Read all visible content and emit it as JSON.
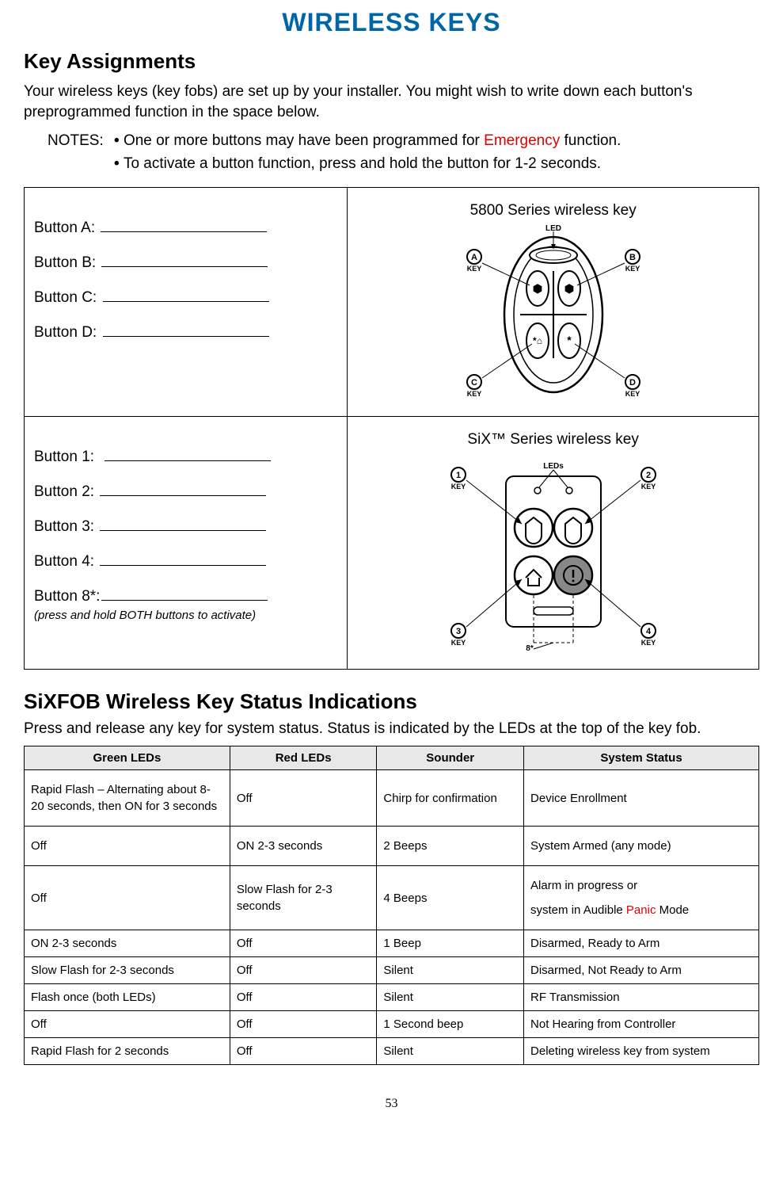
{
  "title": "WIRELESS KEYS",
  "section1": {
    "heading": "Key Assignments",
    "intro": "Your wireless keys (key fobs) are set up by your installer. You might wish to write down each button's preprogrammed function in the space below.",
    "notes_label": "NOTES:",
    "notes": [
      {
        "pre": "One or more buttons may have been programmed for ",
        "red": "Emergency",
        "post": " function."
      },
      {
        "pre": "To activate a button function, press and hold the button for 1-2 seconds.",
        "red": "",
        "post": ""
      }
    ]
  },
  "keyfob_5800": {
    "title": "5800 Series wireless key",
    "buttons": [
      "Button A:",
      "Button B:",
      "Button C:",
      "Button D:"
    ],
    "labels": {
      "A": "A",
      "B": "B",
      "C": "C",
      "D": "D",
      "key": "KEY",
      "led": "LED"
    }
  },
  "keyfob_six": {
    "title": "SiX™ Series wireless key",
    "buttons": [
      "Button 1:",
      "Button 2:",
      "Button 3:",
      "Button 4:",
      "Button 8*:"
    ],
    "note": "(press and hold BOTH buttons to activate)",
    "labels": {
      "1": "1",
      "2": "2",
      "3": "3",
      "4": "4",
      "key": "KEY",
      "leds": "LEDs",
      "star": "8*"
    }
  },
  "section2": {
    "heading": "SiXFOB Wireless Key Status Indications",
    "intro": "Press and release any key for system status. Status is indicated by the LEDs at the top of the key fob."
  },
  "status_table": {
    "headers": [
      "Green LEDs",
      "Red LEDs",
      "Sounder",
      "System Status"
    ],
    "rows": [
      {
        "c": [
          "Rapid Flash – Alternating about 8-20 seconds, then ON for 3 seconds",
          "Off",
          "Chirp for confirmation",
          "Device Enrollment"
        ],
        "tall": true
      },
      {
        "c": [
          "Off",
          "ON 2-3 seconds",
          "2 Beeps",
          "System Armed (any mode)"
        ],
        "tall": true
      },
      {
        "c": [
          "Off",
          "Slow Flash for 2-3 seconds",
          "4 Beeps",
          ""
        ],
        "tall": true,
        "special_status": {
          "line1": "Alarm in progress or",
          "line2_pre": "system in Audible ",
          "line2_red": "Panic",
          "line2_post": " Mode"
        }
      },
      {
        "c": [
          "ON 2-3 seconds",
          "Off",
          "1 Beep",
          "Disarmed, Ready to Arm"
        ]
      },
      {
        "c": [
          "Slow Flash for 2-3 seconds",
          "Off",
          "Silent",
          "Disarmed, Not Ready to Arm"
        ]
      },
      {
        "c": [
          "Flash once (both LEDs)",
          "Off",
          "Silent",
          "RF Transmission"
        ]
      },
      {
        "c": [
          "Off",
          "Off",
          "1 Second beep",
          "Not Hearing from Controller"
        ]
      },
      {
        "c": [
          "Rapid Flash for 2 seconds",
          "Off",
          "Silent",
          "Deleting wireless key from system"
        ]
      }
    ]
  },
  "page_number": "53",
  "colors": {
    "title": "#0066a6",
    "red": "#d00000",
    "border": "#000000",
    "header_bg": "#e8e8e8"
  }
}
